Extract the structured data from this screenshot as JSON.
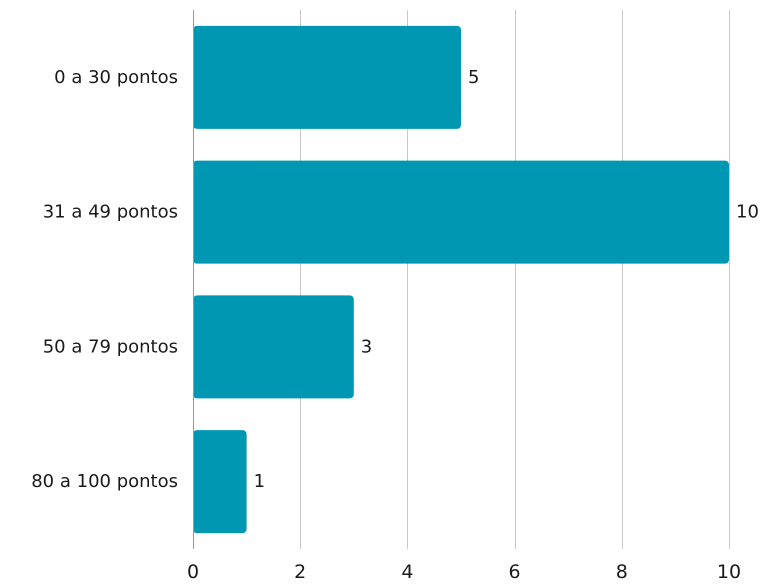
{
  "chart_data": {
    "type": "bar",
    "orientation": "horizontal",
    "categories": [
      "0 a 30 pontos",
      "31 a 49 pontos",
      "50 a 79 pontos",
      "80 a 100 pontos"
    ],
    "values": [
      5,
      10,
      3,
      1
    ],
    "data_labels": [
      "5",
      "10",
      "3",
      "1"
    ],
    "xlim": [
      0,
      10
    ],
    "x_ticks": [
      0,
      2,
      4,
      6,
      8,
      10
    ],
    "x_tick_labels": [
      "0",
      "2",
      "4",
      "6",
      "8",
      "10"
    ],
    "title": "",
    "xlabel": "",
    "ylabel": "",
    "grid": "vertical",
    "legend": "none",
    "bar_color": "#0097b2"
  }
}
